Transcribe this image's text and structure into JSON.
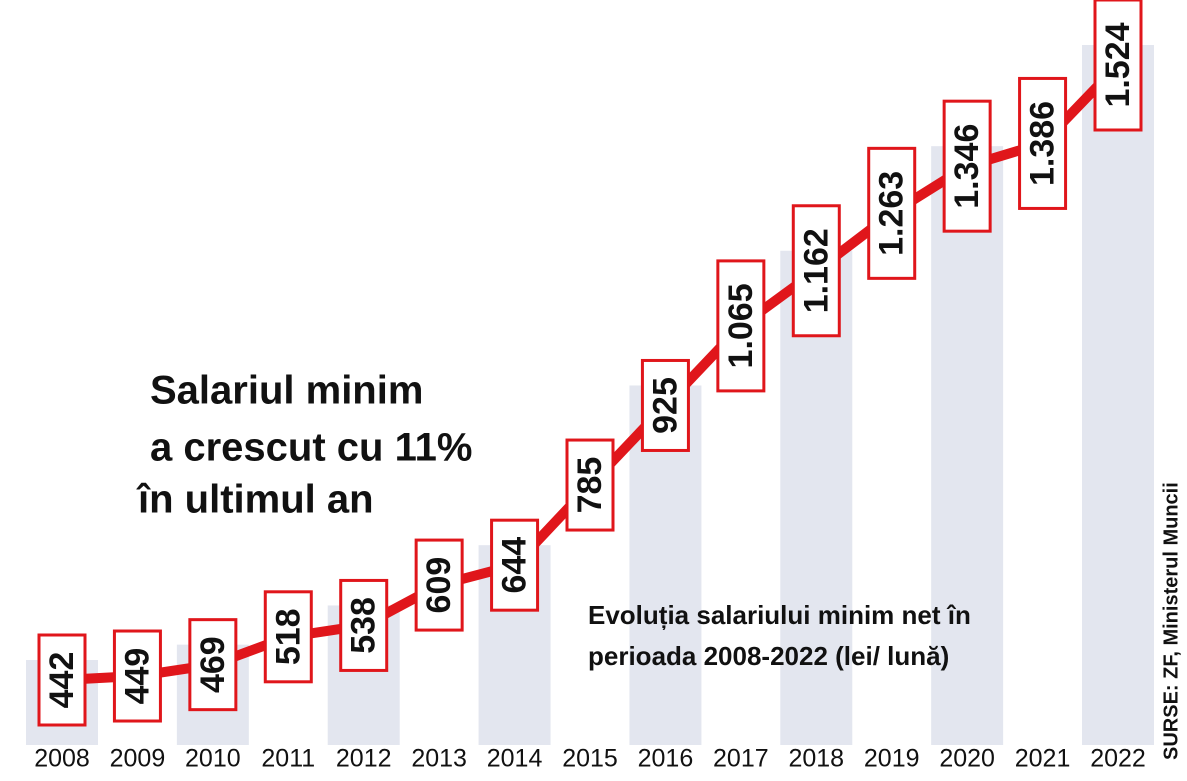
{
  "chart_data": {
    "type": "line",
    "title": [
      "Salariul minim",
      "a crescut cu 11%",
      "în ultimul an"
    ],
    "subtitle": [
      "Evoluția salariului minim net în",
      "perioada 2008-2022 (lei/ lună)"
    ],
    "source": "SURSE: ZF, Ministerul Muncii",
    "categories": [
      "2008",
      "2009",
      "2010",
      "2011",
      "2012",
      "2013",
      "2014",
      "2015",
      "2016",
      "2017",
      "2018",
      "2019",
      "2020",
      "2021",
      "2022"
    ],
    "values": [
      442,
      449,
      469,
      518,
      538,
      609,
      644,
      785,
      925,
      1065,
      1162,
      1263,
      1346,
      1386,
      1524
    ],
    "value_labels": [
      "442",
      "449",
      "469",
      "518",
      "538",
      "609",
      "644",
      "785",
      "925",
      "1.065",
      "1.162",
      "1.263",
      "1.346",
      "1.386",
      "1.524"
    ],
    "color": "#e0161b",
    "bar_color": "#e3e6ef"
  }
}
